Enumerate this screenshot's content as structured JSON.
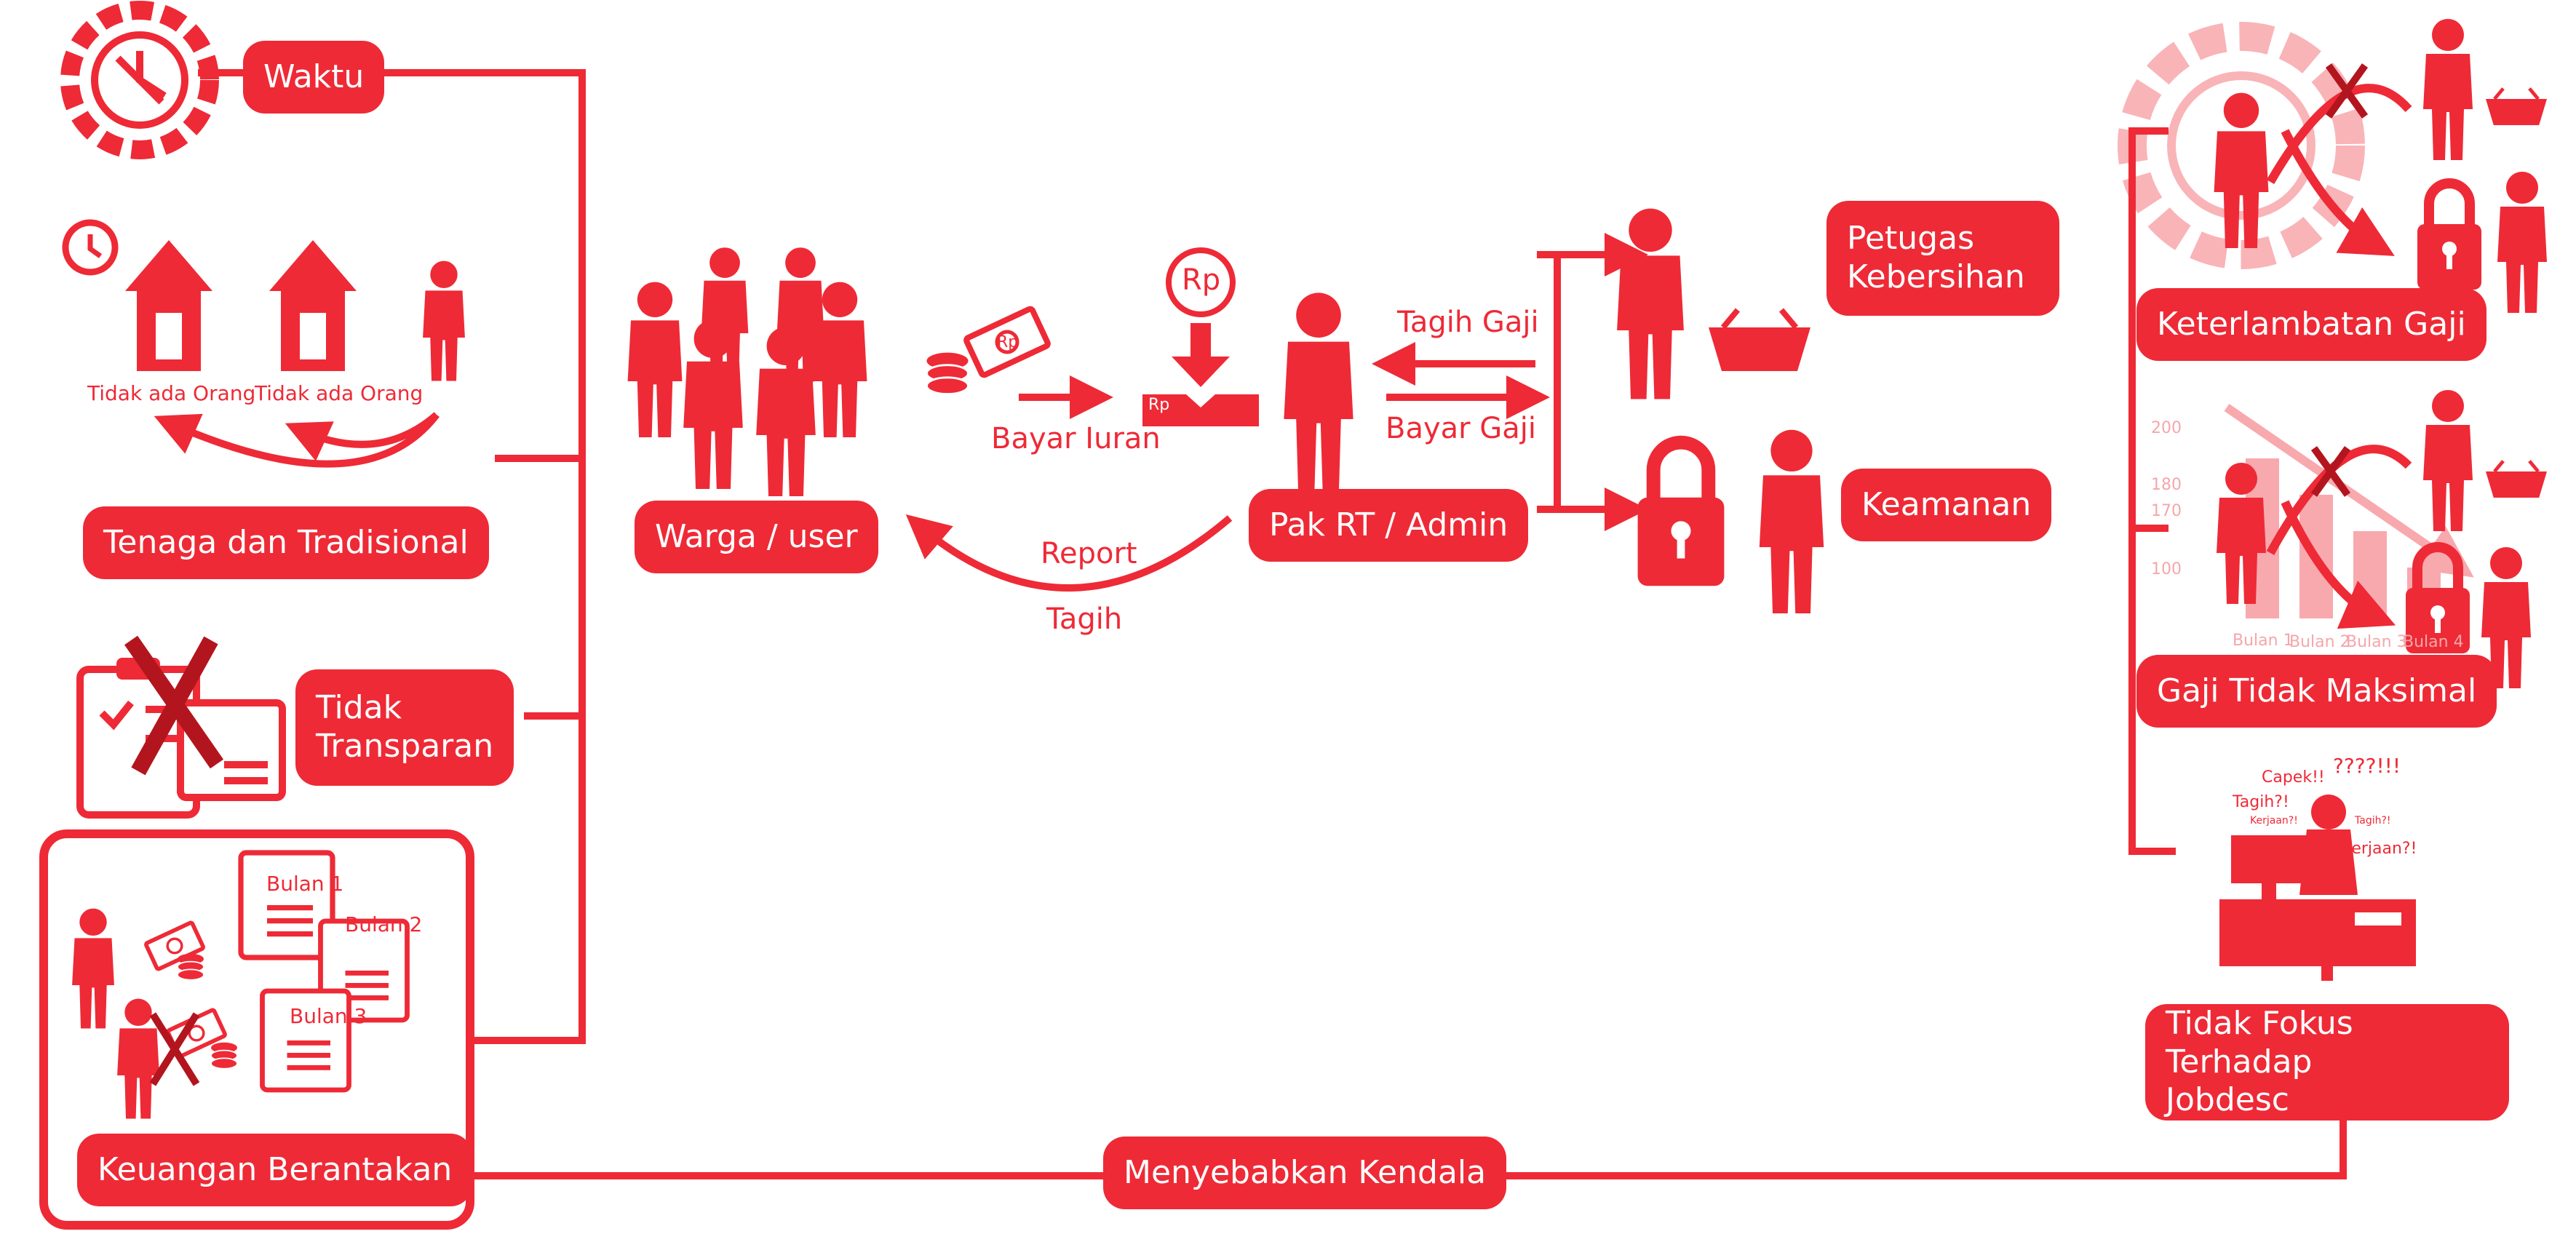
{
  "colors": {
    "accent": "#ee2a36",
    "faint": "#f6b3b6",
    "background": "#ffffff"
  },
  "left": {
    "waktu": "Waktu",
    "tenaga": "Tenaga dan Tradisional",
    "tidak_ada_orang_1": "Tidak ada Orang",
    "tidak_ada_orang_2": "Tidak ada Orang",
    "tidak_transparan_1": "Tidak",
    "tidak_transparan_2": "Transparan",
    "keuangan": "Keuangan Berantakan",
    "bulan": [
      "Bulan 1",
      "Bulan 2",
      "Bulan 3"
    ]
  },
  "center": {
    "warga": "Warga / user",
    "bayar_iuran": "Bayar Iuran",
    "rp_top": "Rp",
    "rp_box": "Rp",
    "rp_money": "Rp",
    "pak_rt": "Pak RT / Admin",
    "tagih_gaji": "Tagih Gaji",
    "bayar_gaji": "Bayar Gaji",
    "report": "Report",
    "tagih": "Tagih"
  },
  "workers": {
    "petugas_1": "Petugas",
    "petugas_2": "Kebersihan",
    "keamanan": "Keamanan"
  },
  "right": {
    "keterlambatan": "Keterlambatan Gaji",
    "gaji_tidak_maksimal": "Gaji Tidak Maksimal",
    "tidak_fokus_1": "Tidak Fokus Terhadap",
    "tidak_fokus_2": "Jobdesc",
    "chart_ticks": [
      "200",
      "180",
      "170",
      "100"
    ],
    "chart_months": [
      "Bulan 1",
      "Bulan 2",
      "Bulan 3",
      "Bulan 4"
    ],
    "bubbles": [
      "Capek!!",
      "????!!!",
      "Tagih?!",
      "Kerjaan?!",
      "Tagih?!",
      "Kerjaan?!"
    ]
  },
  "bottom": {
    "menyebabkan": "Menyebabkan Kendala"
  }
}
